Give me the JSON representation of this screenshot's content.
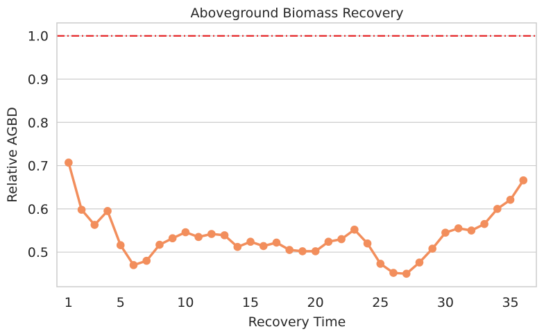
{
  "chart_data": {
    "type": "line",
    "title": "Aboveground Biomass Recovery",
    "xlabel": "Recovery Time",
    "ylabel": "Relative AGBD",
    "x": [
      1,
      2,
      3,
      4,
      5,
      6,
      7,
      8,
      9,
      10,
      11,
      12,
      13,
      14,
      15,
      16,
      17,
      18,
      19,
      20,
      21,
      22,
      23,
      24,
      25,
      26,
      27,
      28,
      29,
      30,
      31,
      32,
      33,
      34,
      35,
      36
    ],
    "series": [
      {
        "values": [
          0.707,
          0.598,
          0.563,
          0.595,
          0.516,
          0.47,
          0.48,
          0.517,
          0.532,
          0.546,
          0.535,
          0.542,
          0.539,
          0.512,
          0.524,
          0.514,
          0.522,
          0.505,
          0.502,
          0.502,
          0.524,
          0.53,
          0.552,
          0.52,
          0.473,
          0.452,
          0.45,
          0.476,
          0.508,
          0.545,
          0.555,
          0.55,
          0.565,
          0.6,
          0.621,
          0.666
        ],
        "color": "#f28e5c"
      }
    ],
    "reference_line": {
      "y": 1.0,
      "color": "#e31a1c",
      "style": "dash-dot"
    },
    "xticks": [
      1,
      5,
      10,
      15,
      20,
      25,
      30,
      35
    ],
    "xtick_labels": [
      "1",
      "5",
      "10",
      "15",
      "20",
      "25",
      "30",
      "35"
    ],
    "yticks": [
      0.5,
      0.6,
      0.7,
      0.8,
      0.9,
      1.0
    ],
    "ytick_labels": [
      "0.5",
      "0.6",
      "0.7",
      "0.8",
      "0.9",
      "1.0"
    ],
    "xlim": [
      0.1,
      37.0
    ],
    "ylim": [
      0.42,
      1.03
    ],
    "grid": "horizontal"
  }
}
